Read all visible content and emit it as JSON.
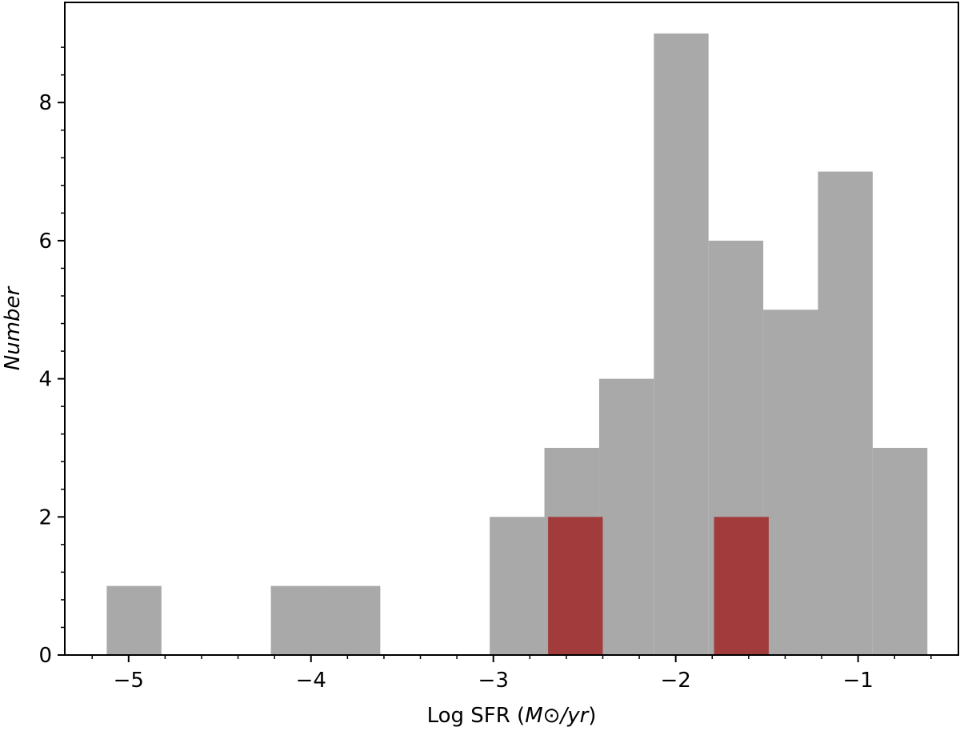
{
  "chart_data": {
    "type": "bar",
    "xlabel_prefix": "Log SFR (",
    "xlabel_unit": "M",
    "xlabel_sun": "⊙",
    "xlabel_suffix": "/yr",
    "xlabel_close": ")",
    "ylabel": "Number",
    "xlim": [
      -5.35,
      -0.45
    ],
    "ylim": [
      0,
      9.45
    ],
    "x_ticks": [
      -5,
      -4,
      -3,
      -2,
      -1
    ],
    "x_tick_labels": [
      "−5",
      "−4",
      "−3",
      "−2",
      "−1"
    ],
    "y_ticks": [
      0,
      2,
      4,
      6,
      8
    ],
    "y_tick_labels": [
      "0",
      "2",
      "4",
      "6",
      "8"
    ],
    "grid": false,
    "series": [
      {
        "color": "#a9a9a9",
        "bins": [
          {
            "x0": -5.12,
            "x1": -4.82,
            "count": 1
          },
          {
            "x0": -4.22,
            "x1": -3.92,
            "count": 1
          },
          {
            "x0": -3.92,
            "x1": -3.62,
            "count": 1
          },
          {
            "x0": -3.02,
            "x1": -2.72,
            "count": 2
          },
          {
            "x0": -2.72,
            "x1": -2.42,
            "count": 3
          },
          {
            "x0": -2.42,
            "x1": -2.12,
            "count": 4
          },
          {
            "x0": -2.12,
            "x1": -1.82,
            "count": 9
          },
          {
            "x0": -1.82,
            "x1": -1.52,
            "count": 6
          },
          {
            "x0": -1.52,
            "x1": -1.22,
            "count": 5
          },
          {
            "x0": -1.22,
            "x1": -0.92,
            "count": 7
          },
          {
            "x0": -0.92,
            "x1": -0.62,
            "count": 3
          }
        ]
      },
      {
        "color": "#a23b3b",
        "bins": [
          {
            "x0": -2.7,
            "x1": -2.4,
            "count": 2
          },
          {
            "x0": -1.79,
            "x1": -1.49,
            "count": 2
          }
        ]
      }
    ]
  }
}
